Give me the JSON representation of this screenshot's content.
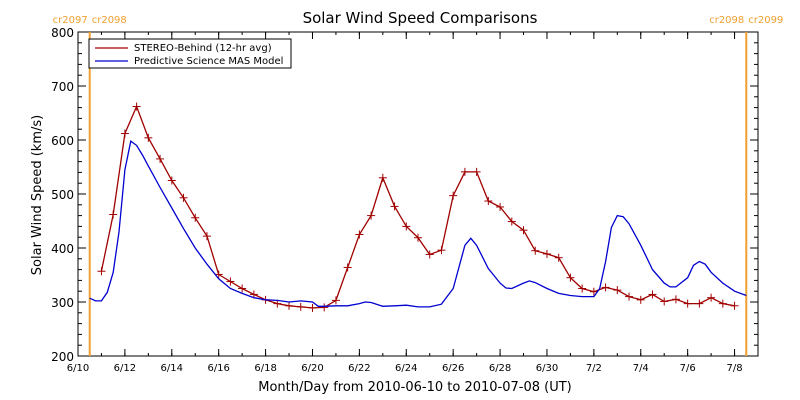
{
  "chart_data": {
    "type": "line",
    "title": "Solar Wind Speed Comparisons",
    "xlabel": "Month/Day from 2010-06-10 to 2010-07-08 (UT)",
    "ylabel": "Solar Wind Speed (km/s)",
    "xlim": [
      "2010-06-10",
      "2010-07-09"
    ],
    "ylim": [
      200,
      800
    ],
    "x_ticks": [
      {
        "date": "2010-06-10",
        "label": "6/10"
      },
      {
        "date": "2010-06-12",
        "label": "6/12"
      },
      {
        "date": "2010-06-14",
        "label": "6/14"
      },
      {
        "date": "2010-06-16",
        "label": "6/16"
      },
      {
        "date": "2010-06-18",
        "label": "6/18"
      },
      {
        "date": "2010-06-20",
        "label": "6/20"
      },
      {
        "date": "2010-06-22",
        "label": "6/22"
      },
      {
        "date": "2010-06-24",
        "label": "6/24"
      },
      {
        "date": "2010-06-26",
        "label": "6/26"
      },
      {
        "date": "2010-06-28",
        "label": "6/28"
      },
      {
        "date": "2010-06-30",
        "label": "6/30"
      },
      {
        "date": "2010-07-02",
        "label": "7/2"
      },
      {
        "date": "2010-07-04",
        "label": "7/4"
      },
      {
        "date": "2010-07-06",
        "label": "7/6"
      },
      {
        "date": "2010-07-08",
        "label": "7/8"
      }
    ],
    "y_ticks": [
      200,
      300,
      400,
      500,
      600,
      700,
      800
    ],
    "grid": false,
    "legend": "top-left",
    "markers": [
      {
        "date": "2010-06-10 12:00",
        "left_label": "cr2097",
        "right_label": "cr2098",
        "color": "#f0a030"
      },
      {
        "date": "2010-07-08 12:00",
        "left_label": "cr2098",
        "right_label": "cr2099",
        "color": "#f0a030"
      }
    ],
    "series": [
      {
        "name": "STEREO-Behind (12-hr avg)",
        "color": "#a00000",
        "marker": "plus",
        "points": [
          [
            "2010-06-11 00:00",
            357
          ],
          [
            "2010-06-11 12:00",
            462
          ],
          [
            "2010-06-12 00:00",
            612
          ],
          [
            "2010-06-12 12:00",
            662
          ],
          [
            "2010-06-13 00:00",
            604
          ],
          [
            "2010-06-13 12:00",
            565
          ],
          [
            "2010-06-14 00:00",
            525
          ],
          [
            "2010-06-14 12:00",
            493
          ],
          [
            "2010-06-15 00:00",
            456
          ],
          [
            "2010-06-15 12:00",
            422
          ],
          [
            "2010-06-16 00:00",
            351
          ],
          [
            "2010-06-16 12:00",
            338
          ],
          [
            "2010-06-17 00:00",
            325
          ],
          [
            "2010-06-17 12:00",
            314
          ],
          [
            "2010-06-18 00:00",
            304
          ],
          [
            "2010-06-18 12:00",
            297
          ],
          [
            "2010-06-19 00:00",
            293
          ],
          [
            "2010-06-19 12:00",
            291
          ],
          [
            "2010-06-20 00:00",
            289
          ],
          [
            "2010-06-20 12:00",
            290
          ],
          [
            "2010-06-21 00:00",
            303
          ],
          [
            "2010-06-21 12:00",
            364
          ],
          [
            "2010-06-22 00:00",
            425
          ],
          [
            "2010-06-22 12:00",
            460
          ],
          [
            "2010-06-23 00:00",
            530
          ],
          [
            "2010-06-23 12:00",
            477
          ],
          [
            "2010-06-24 00:00",
            440
          ],
          [
            "2010-06-24 12:00",
            419
          ],
          [
            "2010-06-25 00:00",
            388
          ],
          [
            "2010-06-25 12:00",
            396
          ],
          [
            "2010-06-26 00:00",
            497
          ],
          [
            "2010-06-26 12:00",
            541
          ],
          [
            "2010-06-27 00:00",
            541
          ],
          [
            "2010-06-27 12:00",
            487
          ],
          [
            "2010-06-28 00:00",
            476
          ],
          [
            "2010-06-28 12:00",
            449
          ],
          [
            "2010-06-29 00:00",
            433
          ],
          [
            "2010-06-29 12:00",
            395
          ],
          [
            "2010-06-30 00:00",
            389
          ],
          [
            "2010-06-30 12:00",
            382
          ],
          [
            "2010-07-01 00:00",
            345
          ],
          [
            "2010-07-01 12:00",
            325
          ],
          [
            "2010-07-02 00:00",
            319
          ],
          [
            "2010-07-02 12:00",
            327
          ],
          [
            "2010-07-03 00:00",
            322
          ],
          [
            "2010-07-03 12:00",
            310
          ],
          [
            "2010-07-04 00:00",
            304
          ],
          [
            "2010-07-04 12:00",
            314
          ],
          [
            "2010-07-05 00:00",
            301
          ],
          [
            "2010-07-05 12:00",
            305
          ],
          [
            "2010-07-06 00:00",
            297
          ],
          [
            "2010-07-06 12:00",
            297
          ],
          [
            "2010-07-07 00:00",
            308
          ],
          [
            "2010-07-07 12:00",
            297
          ],
          [
            "2010-07-08 00:00",
            293
          ]
        ]
      },
      {
        "name": "Predictive Science MAS Model",
        "color": "#0000d0",
        "marker": "none",
        "points": [
          [
            "2010-06-10 12:00",
            307
          ],
          [
            "2010-06-10 18:00",
            302
          ],
          [
            "2010-06-11 00:00",
            302
          ],
          [
            "2010-06-11 06:00",
            318
          ],
          [
            "2010-06-11 12:00",
            355
          ],
          [
            "2010-06-11 18:00",
            430
          ],
          [
            "2010-06-12 00:00",
            545
          ],
          [
            "2010-06-12 06:00",
            598
          ],
          [
            "2010-06-12 12:00",
            590
          ],
          [
            "2010-06-12 18:00",
            572
          ],
          [
            "2010-06-13 00:00",
            552
          ],
          [
            "2010-06-13 12:00",
            512
          ],
          [
            "2010-06-14 00:00",
            474
          ],
          [
            "2010-06-14 12:00",
            436
          ],
          [
            "2010-06-15 00:00",
            400
          ],
          [
            "2010-06-15 12:00",
            370
          ],
          [
            "2010-06-16 00:00",
            343
          ],
          [
            "2010-06-16 12:00",
            325
          ],
          [
            "2010-06-17 00:00",
            316
          ],
          [
            "2010-06-17 12:00",
            308
          ],
          [
            "2010-06-18 00:00",
            304
          ],
          [
            "2010-06-18 12:00",
            303
          ],
          [
            "2010-06-19 00:00",
            300
          ],
          [
            "2010-06-19 12:00",
            302
          ],
          [
            "2010-06-20 00:00",
            300
          ],
          [
            "2010-06-20 06:00",
            292
          ],
          [
            "2010-06-20 12:00",
            292
          ],
          [
            "2010-06-21 00:00",
            293
          ],
          [
            "2010-06-21 12:00",
            293
          ],
          [
            "2010-06-22 00:00",
            297
          ],
          [
            "2010-06-22 06:00",
            300
          ],
          [
            "2010-06-22 12:00",
            299
          ],
          [
            "2010-06-23 00:00",
            292
          ],
          [
            "2010-06-23 12:00",
            293
          ],
          [
            "2010-06-24 00:00",
            294
          ],
          [
            "2010-06-24 12:00",
            291
          ],
          [
            "2010-06-25 00:00",
            291
          ],
          [
            "2010-06-25 12:00",
            296
          ],
          [
            "2010-06-26 00:00",
            325
          ],
          [
            "2010-06-26 12:00",
            405
          ],
          [
            "2010-06-26 18:00",
            418
          ],
          [
            "2010-06-27 00:00",
            405
          ],
          [
            "2010-06-27 12:00",
            362
          ],
          [
            "2010-06-28 00:00",
            335
          ],
          [
            "2010-06-28 06:00",
            326
          ],
          [
            "2010-06-28 12:00",
            325
          ],
          [
            "2010-06-29 00:00",
            335
          ],
          [
            "2010-06-29 06:00",
            339
          ],
          [
            "2010-06-29 12:00",
            336
          ],
          [
            "2010-06-30 00:00",
            325
          ],
          [
            "2010-06-30 12:00",
            316
          ],
          [
            "2010-07-01 00:00",
            312
          ],
          [
            "2010-07-01 12:00",
            310
          ],
          [
            "2010-07-02 00:00",
            310
          ],
          [
            "2010-07-02 06:00",
            325
          ],
          [
            "2010-07-02 12:00",
            375
          ],
          [
            "2010-07-02 18:00",
            438
          ],
          [
            "2010-07-03 00:00",
            460
          ],
          [
            "2010-07-03 06:00",
            458
          ],
          [
            "2010-07-03 12:00",
            445
          ],
          [
            "2010-07-04 00:00",
            405
          ],
          [
            "2010-07-04 12:00",
            360
          ],
          [
            "2010-07-05 00:00",
            335
          ],
          [
            "2010-07-05 06:00",
            328
          ],
          [
            "2010-07-05 12:00",
            328
          ],
          [
            "2010-07-06 00:00",
            345
          ],
          [
            "2010-07-06 06:00",
            368
          ],
          [
            "2010-07-06 12:00",
            375
          ],
          [
            "2010-07-06 18:00",
            370
          ],
          [
            "2010-07-07 00:00",
            355
          ],
          [
            "2010-07-07 12:00",
            335
          ],
          [
            "2010-07-08 00:00",
            320
          ],
          [
            "2010-07-08 12:00",
            312
          ]
        ]
      }
    ]
  }
}
